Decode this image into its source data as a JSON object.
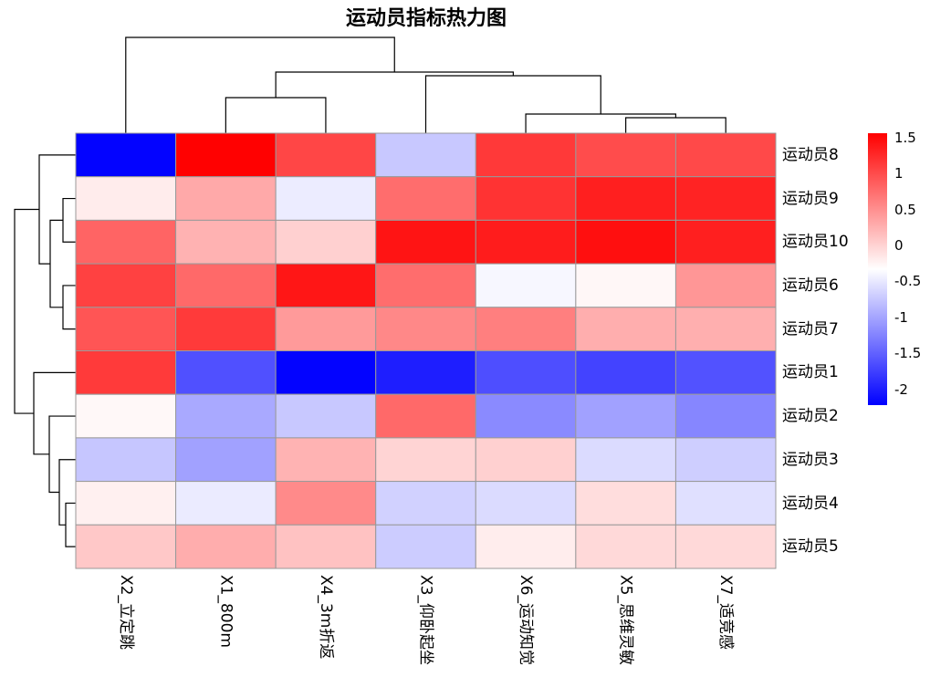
{
  "chart_data": {
    "type": "heatmap",
    "title": "运动员指标热力图",
    "columns": [
      "X2_立定跳",
      "X1_800m",
      "X4_3m折返",
      "X3_仰卧起坐",
      "X6_运动知觉",
      "X5_思维灵敏",
      "X7_适竞感"
    ],
    "rows": [
      "运动员8",
      "运动员9",
      "运动员10",
      "运动员6",
      "运动员7",
      "运动员1",
      "运动员2",
      "运动员3",
      "运动员4",
      "运动员5"
    ],
    "values": [
      [
        -2.2,
        1.55,
        1.04,
        -0.74,
        1.14,
        1.0,
        1.02
      ],
      [
        -0.19,
        0.31,
        -0.47,
        0.75,
        1.18,
        1.33,
        1.3
      ],
      [
        0.82,
        0.24,
        0.02,
        1.41,
        1.35,
        1.45,
        1.33
      ],
      [
        1.08,
        0.78,
        1.4,
        0.75,
        -0.39,
        -0.27,
        0.45
      ],
      [
        0.93,
        1.13,
        0.42,
        0.55,
        0.62,
        0.27,
        0.26
      ],
      [
        1.13,
        -1.63,
        -2.2,
        -2.0,
        -1.64,
        -1.72,
        -1.61
      ],
      [
        -0.28,
        -0.97,
        -0.74,
        0.78,
        -1.2,
        -1.03,
        -1.23
      ],
      [
        -0.75,
        -1.03,
        0.23,
        -0.01,
        0.02,
        -0.6,
        -0.69
      ],
      [
        -0.22,
        -0.48,
        0.54,
        -0.67,
        -0.6,
        -0.08,
        -0.56
      ],
      [
        0.08,
        0.28,
        0.12,
        -0.71,
        -0.2,
        -0.05,
        -0.05
      ]
    ],
    "color_scale": {
      "range": [
        -2.22,
        1.56
      ],
      "low": "#0000FF",
      "mid": "#FFFFFF",
      "high": "#FF0000"
    },
    "legend": {
      "placement": "right",
      "ticks": [
        1.5,
        1,
        0.5,
        0,
        -0.5,
        -1,
        -1.5,
        -2
      ],
      "tick_labels": [
        "1.5",
        "1",
        "0.5",
        "0",
        "-0.5",
        "-1",
        "-1.5",
        "-2"
      ]
    },
    "cell_border_color": "#999999",
    "dendrogram_color": "#000000",
    "col_dendrogram": [
      0,
      [
        [
          1,
          2
        ],
        [
          3,
          [
            4,
            [
              5,
              6
            ]
          ]
        ]
      ]
    ],
    "row_dendrogram": [
      [
        0,
        [
          [
            1,
            2
          ],
          [
            3,
            4
          ]
        ]
      ],
      [
        5,
        [
          6,
          [
            7,
            [
              8,
              9
            ]
          ]
        ]
      ]
    ]
  }
}
